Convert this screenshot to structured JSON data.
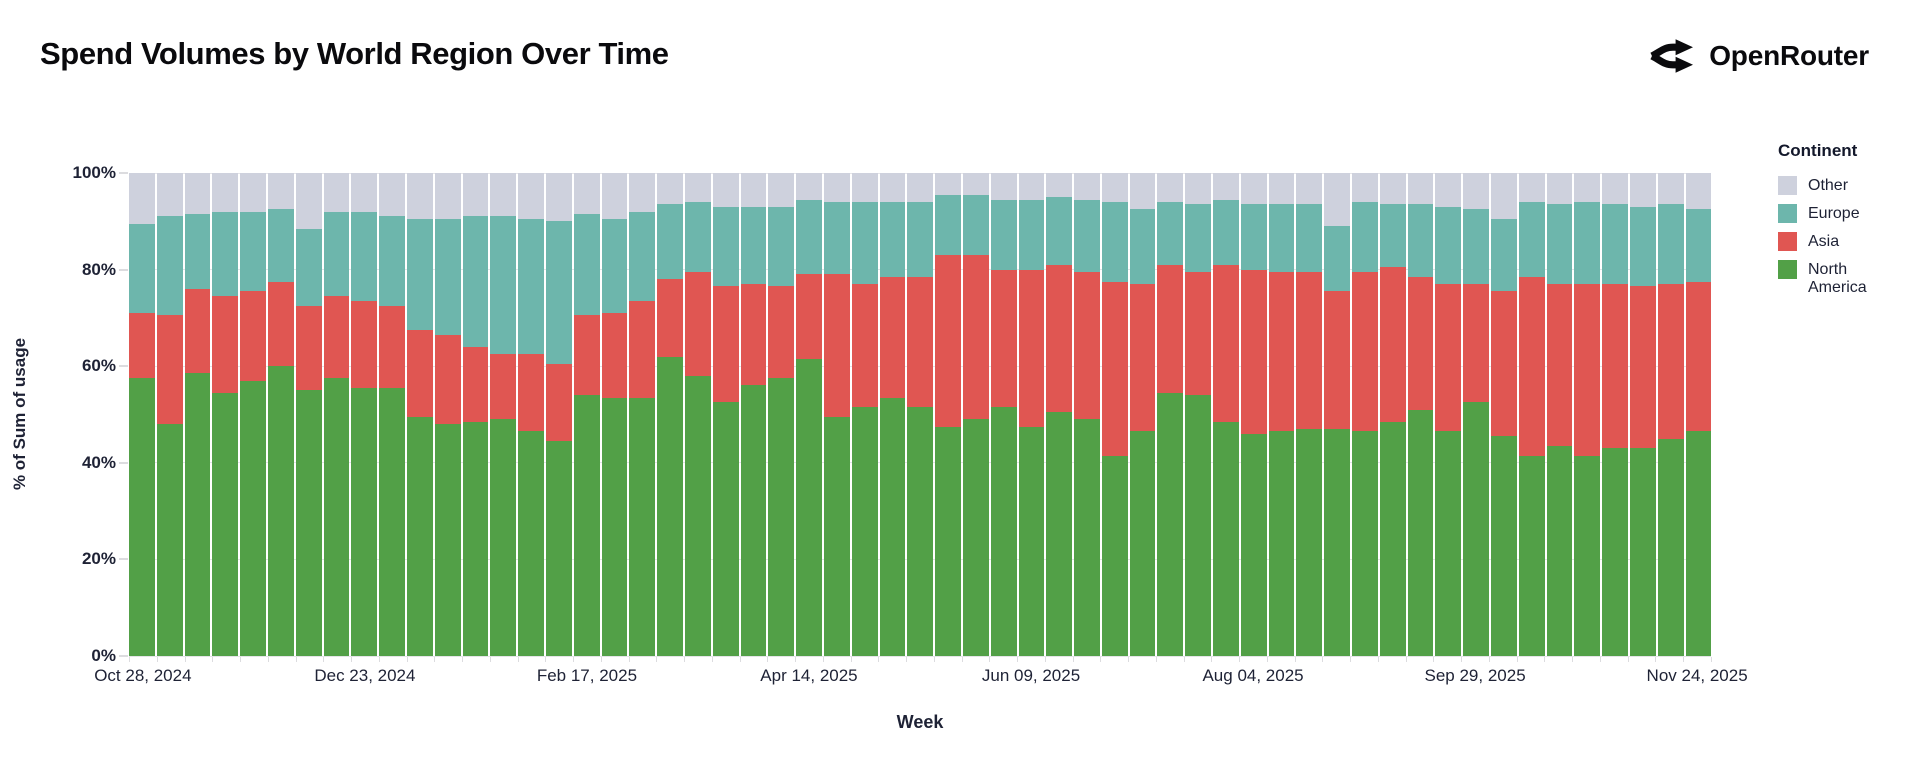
{
  "header": {
    "logo_text": "OpenRouter"
  },
  "chart_data": {
    "type": "bar",
    "stacked": true,
    "units": "percent of weekly total",
    "title": "Spend Volumes by World Region Over Time",
    "xlabel": "Week",
    "ylabel": "% of Sum of usage",
    "ylim": [
      0,
      100
    ],
    "grid": "horizontal",
    "y_tick_labels": [
      "0%",
      "20%",
      "40%",
      "60%",
      "80%",
      "100%"
    ],
    "x_tick_label_every": 8,
    "x_tick_labels": [
      "Oct 28, 2024",
      "Dec 23, 2024",
      "Feb 17, 2025",
      "Apr 14, 2025",
      "Jun 09, 2025",
      "Aug 04, 2025",
      "Sep 29, 2025",
      "Nov 24, 2025"
    ],
    "legend": {
      "title": "Continent",
      "position": "right",
      "entries": [
        {
          "label": "Other",
          "color": "#ced1dd"
        },
        {
          "label": "Europe",
          "color": "#6db6ac"
        },
        {
          "label": "Asia",
          "color": "#e05652"
        },
        {
          "label": "North America",
          "color": "#52a047"
        }
      ]
    },
    "categories": [
      "Oct 28, 2024",
      "Nov 04, 2024",
      "Nov 11, 2024",
      "Nov 18, 2024",
      "Nov 25, 2024",
      "Dec 02, 2024",
      "Dec 09, 2024",
      "Dec 16, 2024",
      "Dec 23, 2024",
      "Dec 30, 2024",
      "Jan 06, 2025",
      "Jan 13, 2025",
      "Jan 20, 2025",
      "Jan 27, 2025",
      "Feb 03, 2025",
      "Feb 10, 2025",
      "Feb 17, 2025",
      "Feb 24, 2025",
      "Mar 03, 2025",
      "Mar 10, 2025",
      "Mar 17, 2025",
      "Mar 24, 2025",
      "Mar 31, 2025",
      "Apr 07, 2025",
      "Apr 14, 2025",
      "Apr 21, 2025",
      "Apr 28, 2025",
      "May 05, 2025",
      "May 12, 2025",
      "May 19, 2025",
      "May 26, 2025",
      "Jun 02, 2025",
      "Jun 09, 2025",
      "Jun 16, 2025",
      "Jun 23, 2025",
      "Jun 30, 2025",
      "Jul 07, 2025",
      "Jul 14, 2025",
      "Jul 21, 2025",
      "Jul 28, 2025",
      "Aug 04, 2025",
      "Aug 11, 2025",
      "Aug 18, 2025",
      "Aug 25, 2025",
      "Sep 01, 2025",
      "Sep 08, 2025",
      "Sep 15, 2025",
      "Sep 22, 2025",
      "Sep 29, 2025",
      "Oct 06, 2025",
      "Oct 13, 2025",
      "Oct 20, 2025",
      "Oct 27, 2025",
      "Nov 03, 2025",
      "Nov 10, 2025",
      "Nov 17, 2025",
      "Nov 24, 2025"
    ],
    "series": [
      {
        "name": "North America",
        "color": "#52a047",
        "values": [
          57.5,
          48,
          58.5,
          54.5,
          57,
          60,
          55,
          57.5,
          55.5,
          55.5,
          49.5,
          48,
          48.5,
          49,
          46.5,
          44.5,
          54,
          53.5,
          53.5,
          62,
          58,
          52.5,
          56,
          57.5,
          61.5,
          49.5,
          51.5,
          53.5,
          51.5,
          47.5,
          49,
          51.5,
          47.5,
          50.5,
          49,
          41.5,
          46.5,
          54.5,
          54,
          48.5,
          46,
          46.5,
          47,
          47,
          46.5,
          48.5,
          51,
          46.5,
          52.5,
          45.5,
          41.5,
          43.5,
          41.5,
          43,
          43,
          45,
          46.5
        ]
      },
      {
        "name": "Asia",
        "color": "#e05652",
        "values": [
          13.5,
          22.5,
          17.5,
          20,
          18.5,
          17.5,
          17.5,
          17,
          18,
          17,
          18,
          18.5,
          15.5,
          13.5,
          16,
          16,
          16.5,
          17.5,
          20,
          16,
          21.5,
          24,
          21,
          19,
          17.5,
          29.5,
          25.5,
          25,
          27,
          35.5,
          34,
          28.5,
          32.5,
          30.5,
          30.5,
          36,
          30.5,
          26.5,
          25.5,
          32.5,
          34,
          33,
          32.5,
          28.5,
          33,
          32,
          27.5,
          30.5,
          24.5,
          30,
          37,
          33.5,
          35.5,
          34,
          33.5,
          32,
          31
        ]
      },
      {
        "name": "Europe",
        "color": "#6db6ac",
        "values": [
          18.5,
          20.5,
          15.5,
          17.5,
          16.5,
          15,
          16,
          17.5,
          18.5,
          18.5,
          23,
          24,
          27,
          28.5,
          28,
          29.5,
          21,
          19.5,
          18.5,
          15.5,
          14.5,
          16.5,
          16,
          16.5,
          15.5,
          15,
          17,
          15.5,
          15.5,
          12.5,
          12.5,
          14.5,
          14.5,
          14,
          15,
          16.5,
          15.5,
          13,
          14,
          13.5,
          13.5,
          14,
          14,
          13.5,
          14.5,
          13,
          15,
          16,
          15.5,
          15,
          15.5,
          16.5,
          17,
          16.5,
          16.5,
          16.5,
          15
        ]
      },
      {
        "name": "Other",
        "color": "#ced1dd",
        "values": [
          10.5,
          9,
          8.5,
          8,
          8,
          7.5,
          11.5,
          8,
          8,
          9,
          9.5,
          9.5,
          9,
          9,
          9.5,
          10,
          8.5,
          9.5,
          8,
          6.5,
          6,
          7,
          7,
          7,
          5.5,
          6,
          6,
          6,
          6,
          4.5,
          4.5,
          5.5,
          5.5,
          5,
          5.5,
          6,
          7.5,
          6,
          6.5,
          5.5,
          6.5,
          6.5,
          6.5,
          11,
          6,
          6.5,
          6.5,
          7,
          7.5,
          9.5,
          6,
          6.5,
          6,
          6.5,
          7,
          6.5,
          7.5
        ]
      }
    ]
  }
}
